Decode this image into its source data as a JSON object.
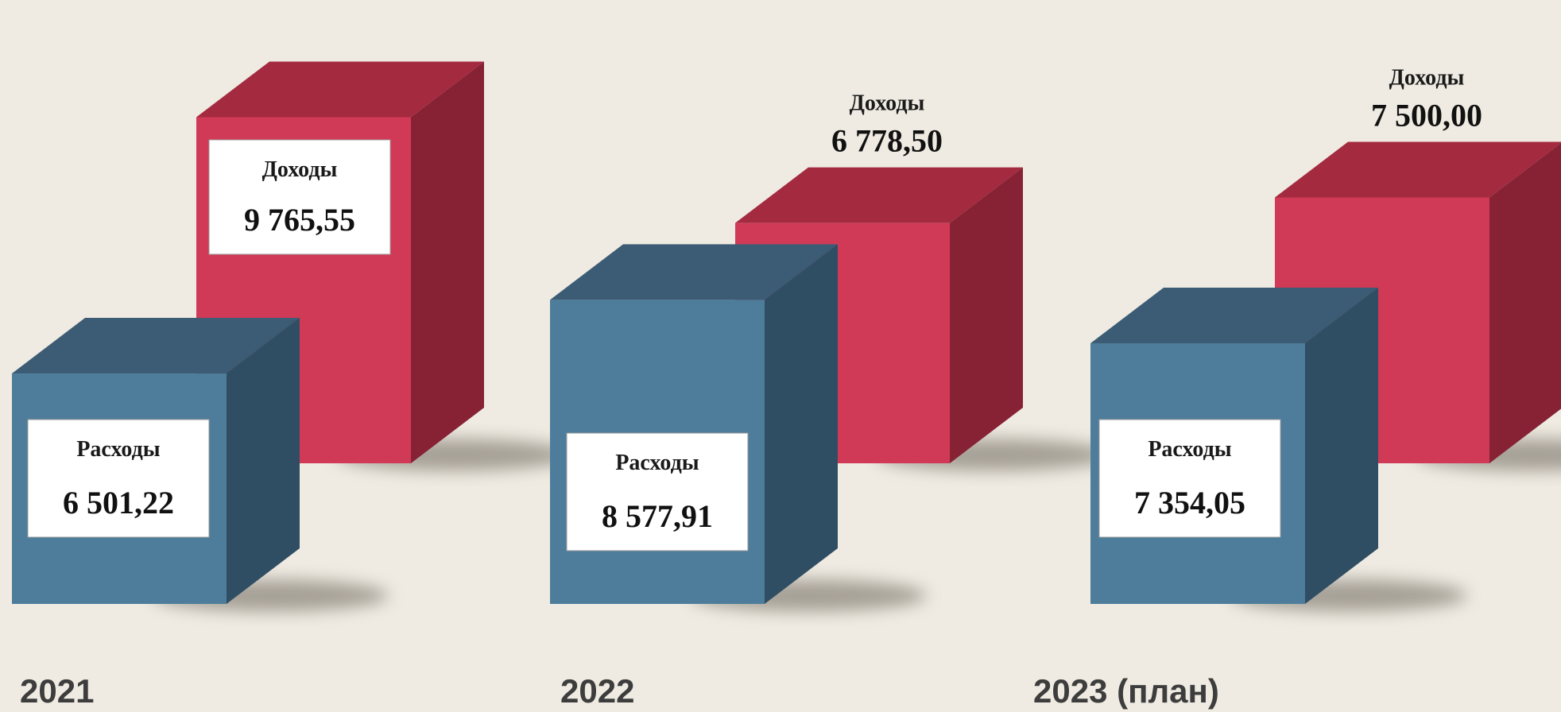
{
  "chart_data": {
    "type": "bar",
    "categories": [
      "2021",
      "2022",
      "2023 (план)"
    ],
    "series": [
      {
        "name": "Доходы",
        "values": [
          9765.55,
          6778.5,
          7500.0
        ],
        "labels": [
          "9 765,55",
          "6 778,50",
          "7 500,00"
        ]
      },
      {
        "name": "Расходы",
        "values": [
          6501.22,
          8577.91,
          7354.05
        ],
        "labels": [
          "6 501,22",
          "8 577,91",
          "7 354,05"
        ]
      }
    ],
    "title": "",
    "xlabel": "",
    "ylabel": "",
    "ylim": [
      0,
      10500
    ],
    "grid": false,
    "legend": "none"
  },
  "colors": {
    "income_front": "#d13a56",
    "income_top": "#a42a40",
    "income_side": "#862234",
    "expense_front": "#4d7d9b",
    "expense_top": "#3b5c74",
    "expense_side": "#2f4e64",
    "background": "#efebe2"
  }
}
